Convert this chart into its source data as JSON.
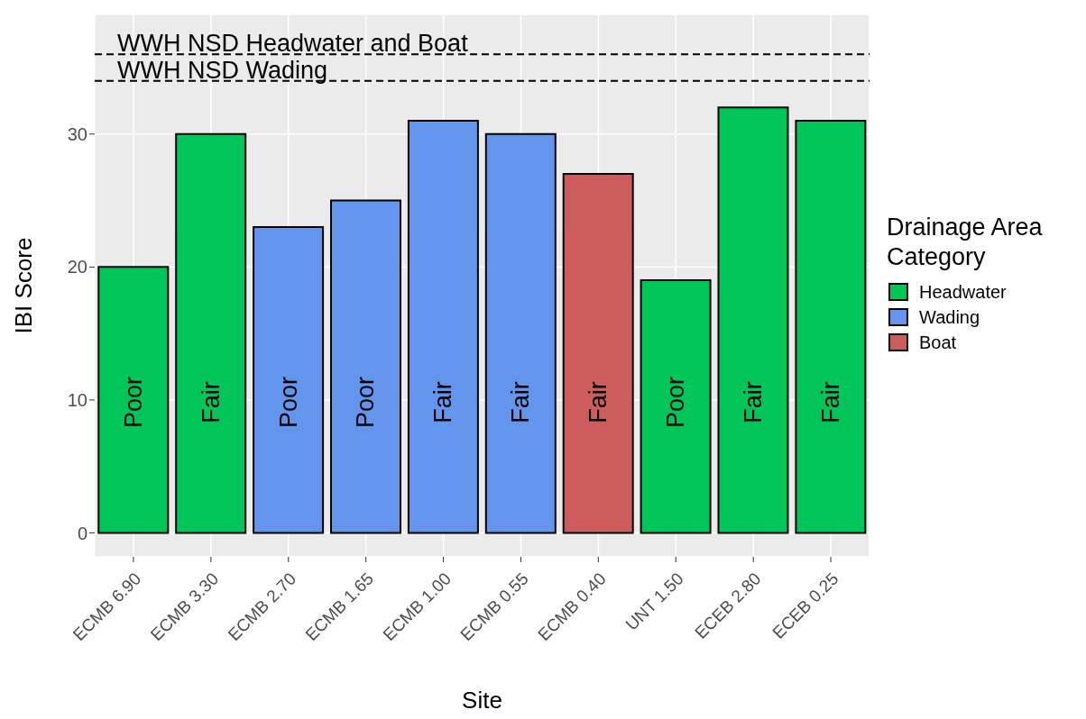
{
  "chart_data": {
    "type": "bar",
    "xlabel": "Site",
    "ylabel": "IBI Score",
    "legend_title": "Drainage Area Category",
    "categories": [
      "ECMB 6.90",
      "ECMB 3.30",
      "ECMB 2.70",
      "ECMB 1.65",
      "ECMB 1.00",
      "ECMB 0.55",
      "ECMB 0.40",
      "UNT 1.50",
      "ECEB 2.80",
      "ECEB 0.25"
    ],
    "stacked": true,
    "series": [
      {
        "name": "Headwater",
        "color": "#00c65a",
        "values": [
          20,
          30,
          null,
          null,
          null,
          null,
          null,
          19,
          32,
          31
        ],
        "value_labels": [
          "Poor",
          "Fair",
          null,
          null,
          null,
          null,
          null,
          "Poor",
          "Fair",
          "Fair"
        ]
      },
      {
        "name": "Wading",
        "color": "#6495ed",
        "values": [
          null,
          null,
          23,
          25,
          31,
          30,
          null,
          null,
          null,
          null
        ],
        "value_labels": [
          null,
          null,
          "Poor",
          "Poor",
          "Fair",
          "Fair",
          null,
          null,
          null,
          null
        ]
      },
      {
        "name": "Boat",
        "color": "#cd5c5c",
        "values": [
          null,
          null,
          null,
          null,
          null,
          null,
          27,
          null,
          null,
          null
        ],
        "value_labels": [
          null,
          null,
          null,
          null,
          null,
          null,
          "Fair",
          null,
          null,
          null
        ]
      }
    ],
    "ylim": [
      -1.8,
      39
    ],
    "yticks": [
      0,
      10,
      20,
      30
    ],
    "grid": true,
    "legend": "right",
    "ref_lines": [
      {
        "axis": "y",
        "value": 36,
        "label": "WWH NSD Headwater and Boat",
        "line_style": "dashed",
        "color": "#000000"
      },
      {
        "axis": "y",
        "value": 34,
        "label": "WWH NSD Wading",
        "line_style": "dashed",
        "color": "#000000"
      }
    ]
  }
}
